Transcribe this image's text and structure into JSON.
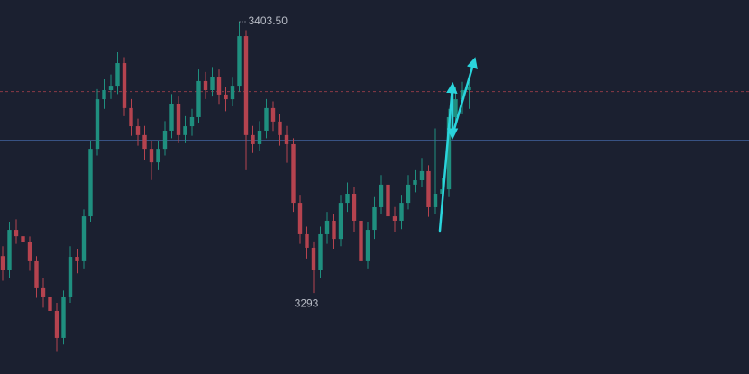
{
  "chart_data": {
    "type": "candlestick",
    "open": [
      3308,
      3302.2,
      3318.7,
      3316.1,
      3313.9,
      3305.9,
      3294.9,
      3291.2,
      3285.7,
      3274.7,
      3291.2,
      3307.7,
      3305.9,
      3324.2,
      3351.7,
      3371.9,
      3375.6,
      3377.4,
      3386.6,
      3368.3,
      3360.9,
      3357.3,
      3351.7,
      3346.2,
      3351.7,
      3359.1,
      3370.1,
      3357.3,
      3360.9,
      3364.6,
      3379.3,
      3375.6,
      3381.1,
      3373.8,
      3371.9,
      3377.4,
      3397.6,
      3357.3,
      3353.6,
      3359.1,
      3368.3,
      3362.8,
      3357.3,
      3353.6,
      3329.7,
      3316.9,
      3311.4,
      3302.2,
      3316.9,
      3322.4,
      3315.0,
      3329.7,
      3333.4,
      3322.4,
      3305.9,
      3318.7,
      3327.9,
      3337.1,
      3324.2,
      3322.4,
      3329.7,
      3337.1,
      3338.9,
      3342.6,
      3327.9,
      3333.4,
      3335.2,
      3364.6,
      3371.9,
      3375.6
    ],
    "high": [
      3312,
      3322,
      3323,
      3319,
      3316,
      3308,
      3299,
      3296,
      3289,
      3294,
      3312,
      3311,
      3327,
      3355,
      3376,
      3380,
      3382,
      3391,
      3389,
      3372,
      3364,
      3361,
      3355,
      3355,
      3363,
      3374,
      3373,
      3365,
      3368,
      3384,
      3383,
      3385,
      3384,
      3377,
      3381,
      3403.5,
      3400,
      3361,
      3363,
      3372,
      3371,
      3366,
      3361,
      3356,
      3333,
      3320,
      3314,
      3320,
      3326,
      3325,
      3333,
      3338,
      3336,
      3325,
      3322,
      3332,
      3341,
      3340,
      3328,
      3333,
      3341,
      3343,
      3348,
      3345,
      3360,
      3340,
      3368,
      3377,
      3379,
      3379
    ],
    "low": [
      3298,
      3299,
      3313,
      3310,
      3302,
      3291,
      3287,
      3281,
      3269,
      3272,
      3289,
      3301,
      3303,
      3322,
      3349,
      3368,
      3372,
      3374,
      3365,
      3357,
      3353,
      3347,
      3339,
      3343,
      3349,
      3356,
      3354,
      3354,
      3357,
      3362,
      3372,
      3373,
      3370,
      3367,
      3369,
      3375,
      3343,
      3350,
      3351,
      3356,
      3359,
      3353,
      3346,
      3326,
      3313,
      3307,
      3293,
      3299,
      3313,
      3311,
      3312,
      3326,
      3318,
      3301,
      3303,
      3315,
      3325,
      3320,
      3318,
      3319,
      3327,
      3334,
      3336,
      3324,
      3325,
      3329,
      3332,
      3361,
      3366,
      3368
    ],
    "close": [
      3302.2,
      3318.7,
      3316.1,
      3313.9,
      3305.9,
      3294.9,
      3291.2,
      3285.7,
      3274.7,
      3291.2,
      3307.7,
      3305.9,
      3324.2,
      3351.7,
      3371.9,
      3375.6,
      3377.4,
      3386.6,
      3368.3,
      3360.9,
      3357.3,
      3351.7,
      3346.2,
      3351.7,
      3359.1,
      3370.1,
      3357.3,
      3360.9,
      3364.6,
      3379.3,
      3375.6,
      3381.1,
      3373.8,
      3371.9,
      3377.4,
      3397.6,
      3357.3,
      3353.6,
      3359.1,
      3368.3,
      3362.8,
      3357.3,
      3353.6,
      3329.7,
      3316.9,
      3311.4,
      3302.2,
      3316.9,
      3322.4,
      3315.0,
      3329.7,
      3333.4,
      3322.4,
      3305.9,
      3318.7,
      3327.9,
      3337.1,
      3324.2,
      3322.4,
      3329.7,
      3337.1,
      3338.9,
      3342.6,
      3327.9,
      3333.4,
      3335.2,
      3364.6,
      3371.9,
      3375.6,
      3376.8
    ],
    "up_color": "#1f8f7f",
    "down_color": "#b5434f",
    "ylim": [
      3260,
      3412.3
    ],
    "price_lines": [
      {
        "value": 3355,
        "color": "#4a6fb5",
        "style": "solid"
      },
      {
        "value": 3375,
        "color": "#8a3a46",
        "style": "dashed"
      }
    ],
    "annotations": [
      {
        "text": "3403.50",
        "value": 3403.5
      },
      {
        "text": "3293",
        "value": 3293
      }
    ]
  }
}
